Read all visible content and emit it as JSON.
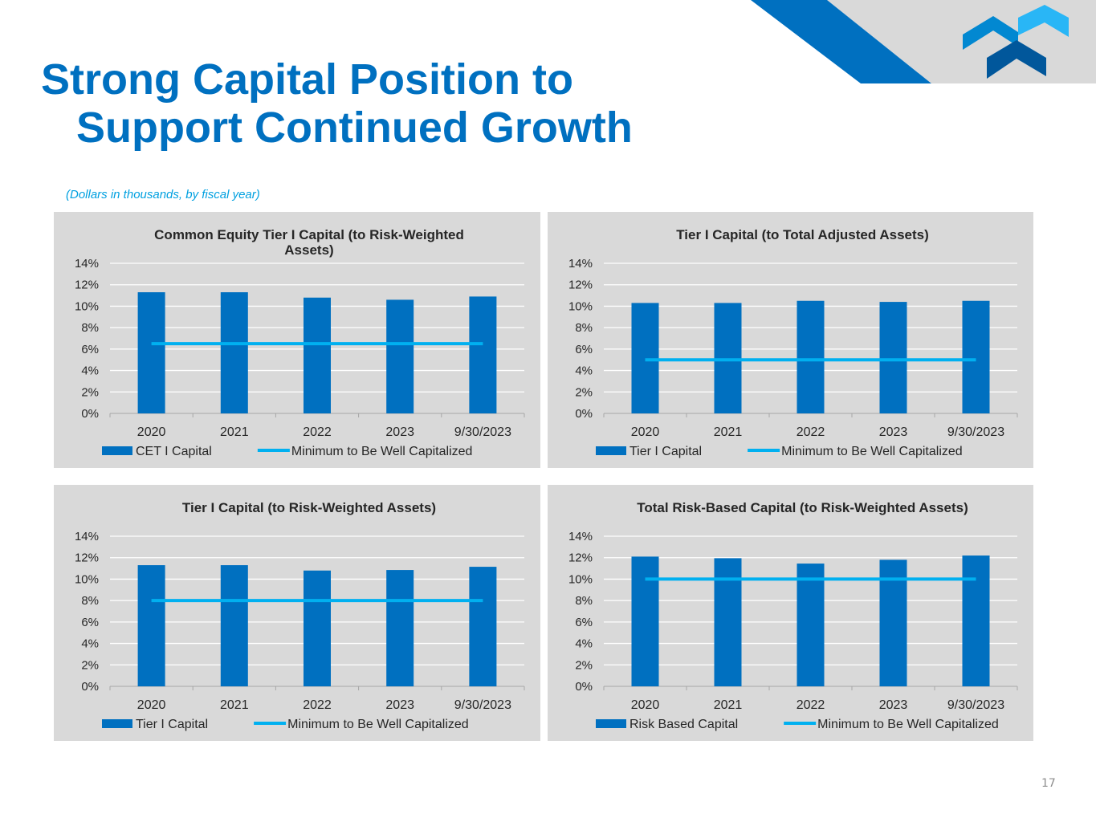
{
  "header": {
    "title_line1": "Strong Capital Position to",
    "title_line2": "Support Continued Growth",
    "subtitle": "(Dollars in thousands, by fiscal year)"
  },
  "page_number": "17",
  "colors": {
    "title": "#0070c0",
    "subtitle": "#00a0e0",
    "bar": "#0070c0",
    "line": "#00b0f0",
    "panel_bg": "#d9d9d9",
    "logo_light": "#29b6f6",
    "logo_mid": "#0288d1",
    "logo_dark": "#01579b"
  },
  "chart_data": [
    {
      "type": "bar",
      "title_lines": [
        "Common Equity Tier I Capital (to Risk-Weighted",
        "Assets)"
      ],
      "categories": [
        "2020",
        "2021",
        "2022",
        "2023",
        "9/30/2023"
      ],
      "series": [
        {
          "name": "CET I Capital",
          "type": "bar",
          "values": [
            11.3,
            11.3,
            10.8,
            10.6,
            10.9
          ]
        },
        {
          "name": "Minimum to Be Well Capitalized",
          "type": "line",
          "values": [
            6.5,
            6.5,
            6.5,
            6.5,
            6.5
          ]
        }
      ],
      "ylim": [
        0,
        14
      ],
      "y_ticks": [
        0,
        2,
        4,
        6,
        8,
        10,
        12,
        14
      ],
      "y_tick_labels": [
        "0%",
        "2%",
        "4%",
        "6%",
        "8%",
        "10%",
        "12%",
        "14%"
      ],
      "legend": "bottom",
      "grid": true
    },
    {
      "type": "bar",
      "title_lines": [
        "Tier I Capital (to Total Adjusted Assets)"
      ],
      "categories": [
        "2020",
        "2021",
        "2022",
        "2023",
        "9/30/2023"
      ],
      "series": [
        {
          "name": "Tier I Capital",
          "type": "bar",
          "values": [
            10.3,
            10.3,
            10.5,
            10.4,
            10.5
          ]
        },
        {
          "name": "Minimum to Be Well Capitalized",
          "type": "line",
          "values": [
            5,
            5,
            5,
            5,
            5
          ]
        }
      ],
      "ylim": [
        0,
        14
      ],
      "y_ticks": [
        0,
        2,
        4,
        6,
        8,
        10,
        12,
        14
      ],
      "y_tick_labels": [
        "0%",
        "2%",
        "4%",
        "6%",
        "8%",
        "10%",
        "12%",
        "14%"
      ],
      "legend": "bottom",
      "grid": true
    },
    {
      "type": "bar",
      "title_lines": [
        "Tier I Capital (to Risk-Weighted Assets)"
      ],
      "categories": [
        "2020",
        "2021",
        "2022",
        "2023",
        "9/30/2023"
      ],
      "series": [
        {
          "name": "Tier I Capital",
          "type": "bar",
          "values": [
            11.3,
            11.3,
            10.8,
            10.85,
            11.15
          ]
        },
        {
          "name": "Minimum to Be Well Capitalized",
          "type": "line",
          "values": [
            8,
            8,
            8,
            8,
            8
          ]
        }
      ],
      "ylim": [
        0,
        14
      ],
      "y_ticks": [
        0,
        2,
        4,
        6,
        8,
        10,
        12,
        14
      ],
      "y_tick_labels": [
        "0%",
        "2%",
        "4%",
        "6%",
        "8%",
        "10%",
        "12%",
        "14%"
      ],
      "legend": "bottom",
      "grid": true
    },
    {
      "type": "bar",
      "title_lines": [
        "Total Risk-Based Capital (to Risk-Weighted Assets)"
      ],
      "categories": [
        "2020",
        "2021",
        "2022",
        "2023",
        "9/30/2023"
      ],
      "series": [
        {
          "name": "Risk Based Capital",
          "type": "bar",
          "values": [
            12.1,
            11.95,
            11.45,
            11.8,
            12.2
          ]
        },
        {
          "name": "Minimum to Be Well Capitalized",
          "type": "line",
          "values": [
            10,
            10,
            10,
            10,
            10
          ]
        }
      ],
      "ylim": [
        0,
        14
      ],
      "y_ticks": [
        0,
        2,
        4,
        6,
        8,
        10,
        12,
        14
      ],
      "y_tick_labels": [
        "0%",
        "2%",
        "4%",
        "6%",
        "8%",
        "10%",
        "12%",
        "14%"
      ],
      "legend": "bottom",
      "grid": true
    }
  ]
}
